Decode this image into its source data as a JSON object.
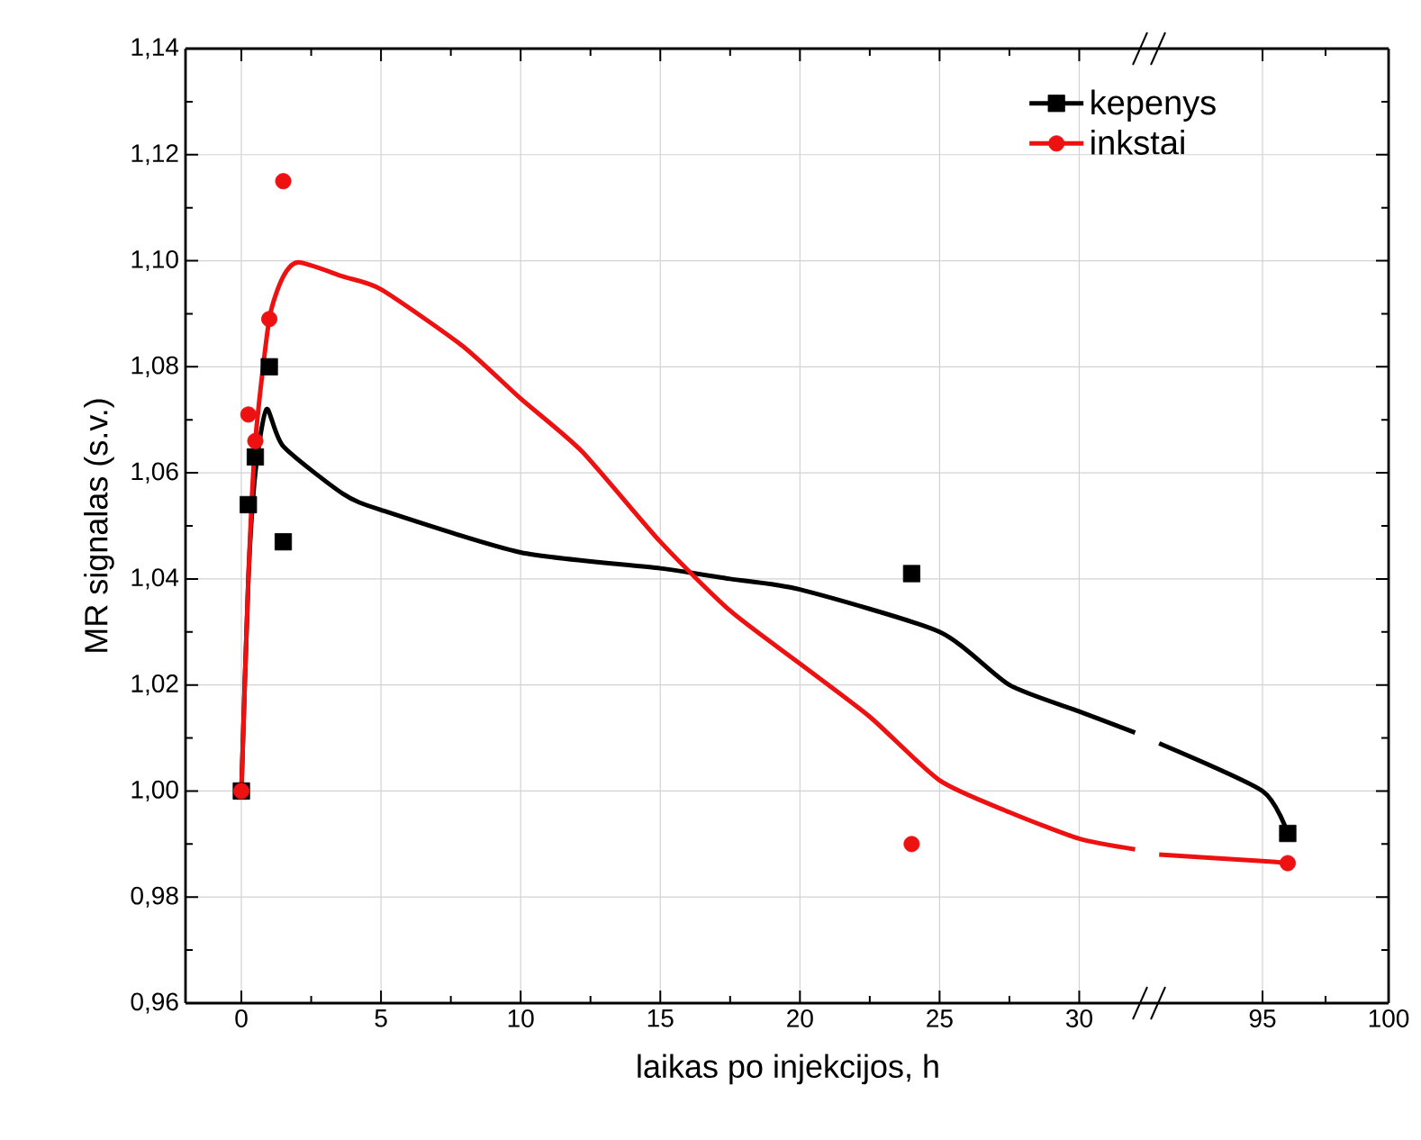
{
  "chart_data": [
    {
      "type": "scatter",
      "xlabel": "laikas po injekcijos, h",
      "ylabel": "MR signalas (s.v.)",
      "xlim": [
        -2,
        32.5
      ],
      "xticks": [
        0,
        5,
        10,
        15,
        20,
        25,
        30
      ],
      "ylim": [
        0.96,
        1.14
      ],
      "yticks": [
        {
          "value": 0.96,
          "label": "0,96"
        },
        {
          "value": 0.98,
          "label": "0,98"
        },
        {
          "value": 1.0,
          "label": "1,00"
        },
        {
          "value": 1.02,
          "label": "1,02"
        },
        {
          "value": 1.04,
          "label": "1,04"
        },
        {
          "value": 1.06,
          "label": "1,06"
        },
        {
          "value": 1.08,
          "label": "1,08"
        },
        {
          "value": 1.1,
          "label": "1,10"
        },
        {
          "value": 1.12,
          "label": "1,12"
        },
        {
          "value": 1.14,
          "label": "1,14"
        }
      ],
      "grid": true,
      "legend": "top right",
      "series": [
        {
          "type": "line",
          "color": "#000000",
          "marker": "none",
          "x": [
            0,
            0.25,
            0.5,
            0.9,
            1.5,
            3.65,
            5,
            10,
            15,
            17.5,
            20,
            25,
            27.5,
            30,
            32
          ],
          "values": [
            1.0,
            1.04,
            1.06,
            1.072,
            1.065,
            1.056,
            1.053,
            1.045,
            1.042,
            1.04,
            1.038,
            1.03,
            1.02,
            1.015,
            1.011
          ]
        },
        {
          "type": "line",
          "color": "#ee1111",
          "marker": "none",
          "x": [
            0,
            0.25,
            0.5,
            1,
            1.5,
            2.05,
            3.65,
            5,
            7.9,
            10,
            12.2,
            15,
            17.5,
            20,
            22.5,
            25,
            27.5,
            30,
            32
          ],
          "values": [
            1.0,
            1.04,
            1.066,
            1.089,
            1.097,
            1.0997,
            1.097,
            1.0946,
            1.084,
            1.074,
            1.064,
            1.047,
            1.034,
            1.024,
            1.014,
            1.002,
            0.996,
            0.991,
            0.989
          ]
        },
        {
          "name": "kepenys",
          "color": "#000000",
          "marker": "square",
          "x": [
            0,
            0.25,
            0.5,
            1,
            1.5,
            24
          ],
          "values": [
            1.0,
            1.054,
            1.063,
            1.08,
            1.047,
            1.041
          ]
        },
        {
          "name": "inkstai",
          "color": "#ee1111",
          "marker": "circle",
          "x": [
            0,
            0.25,
            0.5,
            1,
            1.5,
            24
          ],
          "values": [
            1.0,
            1.071,
            1.066,
            1.089,
            1.115,
            0.99
          ]
        }
      ]
    },
    {
      "type": "scatter",
      "xlim": [
        90.5,
        100
      ],
      "xticks": [
        95,
        100
      ],
      "ylim": [
        0.96,
        1.14
      ],
      "yticks": [
        0.96,
        0.98,
        1.0,
        1.02,
        1.04,
        1.06,
        1.08,
        1.1,
        1.12,
        1.14
      ],
      "tick_labels": "x",
      "grid": true,
      "series": [
        {
          "type": "line",
          "color": "#000000",
          "marker": "none",
          "x": [
            90.9,
            95,
            96
          ],
          "values": [
            1.009,
            1.0,
            0.992
          ]
        },
        {
          "type": "line",
          "color": "#ee1111",
          "marker": "none",
          "x": [
            90.9,
            95,
            96
          ],
          "values": [
            0.988,
            0.9868,
            0.9864
          ]
        },
        {
          "color": "#000000",
          "marker": "square",
          "x": [
            96
          ],
          "values": [
            0.992
          ]
        },
        {
          "color": "#ee1111",
          "marker": "circle",
          "x": [
            96
          ],
          "values": [
            0.9864
          ]
        }
      ]
    }
  ]
}
